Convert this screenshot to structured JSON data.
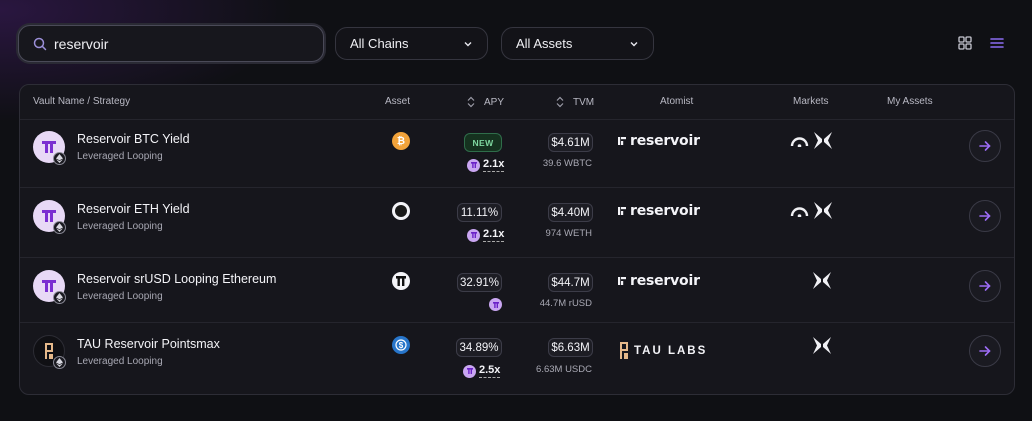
{
  "search": {
    "value": "reservoir",
    "icon": "search-icon"
  },
  "filters": {
    "chains": {
      "selected": "All Chains"
    },
    "assets": {
      "selected": "All Assets"
    }
  },
  "view": {
    "grid_icon": "grid-icon",
    "list_icon": "list-icon",
    "active": "list",
    "accent": "#8b6cf2"
  },
  "table": {
    "headers": {
      "vault": "Vault Name / Strategy",
      "asset": "Asset",
      "apy": "APY",
      "tvm": "TVM",
      "atomist": "Atomist",
      "markets": "Markets",
      "my_assets": "My Assets"
    },
    "rows": [
      {
        "name": "Reservoir BTC Yield",
        "strategy": "Leveraged Looping",
        "asset_icon": "bitcoin-icon",
        "apy": "NEW",
        "apy_is_new": true,
        "boost": "2.1x",
        "tvm": "$4.61M",
        "tvm_sub": "39.6 WBTC",
        "atomist": "reservoir",
        "markets": [
          "morpho-icon",
          "butterfly-icon"
        ]
      },
      {
        "name": "Reservoir ETH Yield",
        "strategy": "Leveraged Looping",
        "asset_icon": "weth-icon",
        "apy": "11.11%",
        "apy_is_new": false,
        "boost": "2.1x",
        "tvm": "$4.40M",
        "tvm_sub": "974 WETH",
        "atomist": "reservoir",
        "markets": [
          "morpho-icon",
          "butterfly-icon"
        ]
      },
      {
        "name": "Reservoir srUSD Looping Ethereum",
        "strategy": "Leveraged Looping",
        "asset_icon": "srusd-icon",
        "apy": "32.91%",
        "apy_is_new": false,
        "boost": "",
        "tvm": "$44.7M",
        "tvm_sub": "44.7M rUSD",
        "atomist": "reservoir",
        "markets": [
          "butterfly-icon"
        ]
      },
      {
        "name": "TAU Reservoir Pointsmax",
        "strategy": "Leveraged Looping",
        "asset_icon": "usdc-icon",
        "apy": "34.89%",
        "apy_is_new": false,
        "boost": "2.5x",
        "tvm": "$6.63M",
        "tvm_sub": "6.63M USDC",
        "atomist": "TAU LABS",
        "markets": [
          "butterfly-icon"
        ]
      }
    ]
  }
}
